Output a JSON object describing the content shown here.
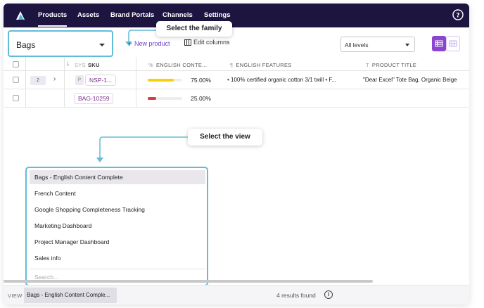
{
  "nav": {
    "tabs": [
      "Products",
      "Assets",
      "Brand Portals",
      "Channels",
      "Settings"
    ],
    "help_icon": "help-circle-icon"
  },
  "family": {
    "value": "Bags"
  },
  "toolbar": {
    "new_product": "New product",
    "edit_columns": "Edit columns",
    "levels": "All levels"
  },
  "callouts": {
    "family": "Select the family",
    "view": "Select the view"
  },
  "columns": {
    "sys": "SYS",
    "sku": "SKU",
    "english_content": "ENGLISH CONTE...",
    "english_features": "ENGLISH FEATURES",
    "product_title": "PRODUCT TITLE"
  },
  "rows": [
    {
      "count": "2",
      "type": "P",
      "sku": "NSP-1...",
      "completeness": "75.00%",
      "features": "• 100% certified organic cotton 3/1 twill • F...",
      "title": "\"Dear Excel\" Tote Bag, Organic Beige"
    },
    {
      "sku": "BAG-10259",
      "completeness": "25.00%"
    }
  ],
  "progress": [
    0.75,
    0.25
  ],
  "colors": {
    "nav_bg": "#1d1540",
    "accent": "#8b45d1",
    "callout_border": "#62bcd8",
    "bar_high": "#f5d10f",
    "bar_low": "#d83d3d"
  },
  "views": {
    "items": [
      "Bags - English Content Complete",
      "French Content",
      "Google Shopping Completeness Tracking",
      "Marketing Dashboard",
      "Project Manager Dashboard",
      "Sales info"
    ],
    "search_placeholder": "Search..."
  },
  "footer": {
    "view_label": "VIEW",
    "current_view": "Bags - English Content Comple...",
    "results": "4 results found"
  }
}
